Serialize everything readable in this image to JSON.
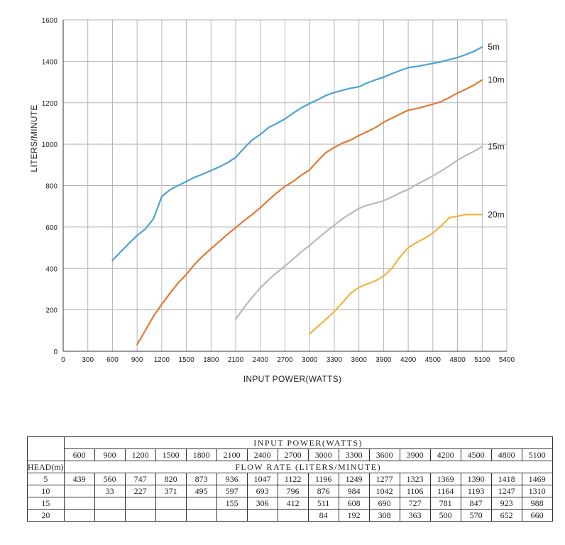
{
  "chart_data": {
    "type": "line",
    "xlabel": "INPUT POWER(WATTS)",
    "ylabel": "LITERS/MINUTE",
    "xlim": [
      0,
      5400
    ],
    "ylim": [
      0,
      1600
    ],
    "x_ticks": [
      "0",
      "300",
      "600",
      "900",
      "1200",
      "1500",
      "1800",
      "2100",
      "2400",
      "2700",
      "3000",
      "3300",
      "3600",
      "3900",
      "4200",
      "4500",
      "4800",
      "5100",
      "5400"
    ],
    "y_ticks": [
      "0",
      "200",
      "400",
      "600",
      "800",
      "1000",
      "1200",
      "1400",
      "1600"
    ],
    "grid": true,
    "series": [
      {
        "name": "5m",
        "color": "#4aa3d3",
        "x": [
          600,
          700,
          800,
          900,
          1000,
          1100,
          1200,
          1300,
          1400,
          1500,
          1600,
          1700,
          1800,
          1900,
          2000,
          2100,
          2200,
          2300,
          2400,
          2500,
          2600,
          2700,
          2800,
          2900,
          3000,
          3100,
          3200,
          3300,
          3400,
          3500,
          3600,
          3700,
          3800,
          3900,
          4000,
          4100,
          4200,
          4300,
          4400,
          4500,
          4600,
          4700,
          4800,
          4900,
          5000,
          5100
        ],
        "y": [
          439,
          480,
          520,
          560,
          590,
          640,
          747,
          780,
          800,
          820,
          840,
          855,
          873,
          890,
          910,
          936,
          980,
          1020,
          1047,
          1080,
          1100,
          1122,
          1150,
          1175,
          1196,
          1215,
          1235,
          1249,
          1260,
          1270,
          1277,
          1295,
          1310,
          1323,
          1340,
          1355,
          1369,
          1375,
          1382,
          1390,
          1398,
          1408,
          1418,
          1432,
          1448,
          1469
        ]
      },
      {
        "name": "10m",
        "color": "#e07a35",
        "x": [
          900,
          1000,
          1100,
          1200,
          1300,
          1400,
          1500,
          1600,
          1700,
          1800,
          1900,
          2000,
          2100,
          2200,
          2300,
          2400,
          2500,
          2600,
          2700,
          2800,
          2900,
          3000,
          3100,
          3200,
          3300,
          3400,
          3500,
          3600,
          3700,
          3800,
          3900,
          4000,
          4100,
          4200,
          4300,
          4400,
          4500,
          4600,
          4700,
          4800,
          4900,
          5000,
          5100
        ],
        "y": [
          33,
          100,
          170,
          227,
          280,
          330,
          371,
          420,
          460,
          495,
          530,
          565,
          597,
          630,
          660,
          693,
          730,
          765,
          796,
          820,
          850,
          876,
          920,
          960,
          984,
          1005,
          1020,
          1042,
          1060,
          1080,
          1106,
          1125,
          1145,
          1164,
          1172,
          1182,
          1193,
          1205,
          1225,
          1247,
          1265,
          1285,
          1310
        ]
      },
      {
        "name": "15m",
        "color": "#b9b9b9",
        "x": [
          2100,
          2200,
          2300,
          2400,
          2500,
          2600,
          2700,
          2800,
          2900,
          3000,
          3100,
          3200,
          3300,
          3400,
          3500,
          3600,
          3700,
          3800,
          3900,
          4000,
          4100,
          4200,
          4300,
          4400,
          4500,
          4600,
          4700,
          4800,
          4900,
          5000,
          5100
        ],
        "y": [
          155,
          210,
          260,
          306,
          345,
          380,
          412,
          445,
          480,
          511,
          545,
          578,
          608,
          640,
          665,
          690,
          705,
          715,
          727,
          745,
          765,
          781,
          805,
          825,
          847,
          870,
          895,
          923,
          945,
          965,
          988
        ]
      },
      {
        "name": "20m",
        "color": "#f0b43c",
        "x": [
          3000,
          3100,
          3200,
          3300,
          3400,
          3500,
          3600,
          3700,
          3800,
          3900,
          4000,
          4100,
          4200,
          4300,
          4400,
          4500,
          4600,
          4700,
          4800,
          4900,
          5000,
          5100
        ],
        "y": [
          84,
          120,
          155,
          192,
          235,
          280,
          308,
          325,
          340,
          363,
          400,
          455,
          500,
          525,
          545,
          570,
          605,
          645,
          652,
          660,
          660,
          660
        ]
      }
    ]
  },
  "table": {
    "header_caption": "INPUT  POWER(WATTS)",
    "powers": [
      "600",
      "900",
      "1200",
      "1500",
      "1800",
      "2100",
      "2400",
      "2700",
      "3000",
      "3300",
      "3600",
      "3900",
      "4200",
      "4500",
      "4800",
      "5100"
    ],
    "head_label": "HEAD(m)",
    "flow_caption": "FLOW RATE (LITERS/MINUTE)",
    "rows": [
      {
        "head": "5",
        "values": [
          "439",
          "560",
          "747",
          "820",
          "873",
          "936",
          "1047",
          "1122",
          "1196",
          "1249",
          "1277",
          "1323",
          "1369",
          "1390",
          "1418",
          "1469"
        ]
      },
      {
        "head": "10",
        "values": [
          "",
          "33",
          "227",
          "371",
          "495",
          "597",
          "693",
          "796",
          "876",
          "984",
          "1042",
          "1106",
          "1164",
          "1193",
          "1247",
          "1310"
        ]
      },
      {
        "head": "15",
        "values": [
          "",
          "",
          "",
          "",
          "",
          "155",
          "306",
          "412",
          "511",
          "608",
          "690",
          "727",
          "781",
          "847",
          "923",
          "988"
        ]
      },
      {
        "head": "20",
        "values": [
          "",
          "",
          "",
          "",
          "",
          "",
          "",
          "",
          "84",
          "192",
          "308",
          "363",
          "500",
          "570",
          "652",
          "660"
        ]
      }
    ]
  }
}
